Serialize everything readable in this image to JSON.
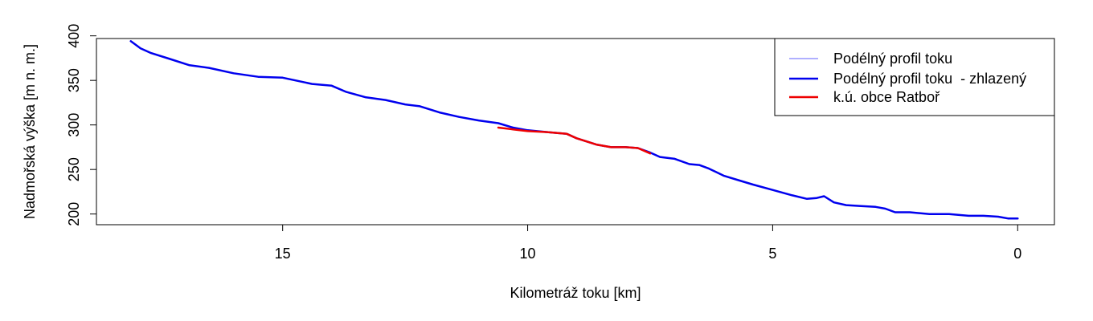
{
  "chart_data": {
    "type": "line",
    "title": "",
    "xlabel": "Kilometráž toku [km]",
    "ylabel": "Nadmořská výška [m n. m.]",
    "xlim": [
      18.8,
      -0.75
    ],
    "ylim": [
      188,
      397
    ],
    "x_reversed": true,
    "grid": false,
    "legend_position": "top-right",
    "xticks": [
      15,
      10,
      5,
      0
    ],
    "yticks": [
      200,
      250,
      300,
      350,
      400
    ],
    "series": [
      {
        "name": "Podélný profil toku",
        "color": "#8080ff",
        "x": [
          18.1,
          17.9,
          17.7,
          17.3,
          16.9,
          16.5,
          16.0,
          15.5,
          15.0,
          14.4,
          14.0,
          13.7,
          13.3,
          12.9,
          12.5,
          12.2,
          11.8,
          11.4,
          11.0,
          10.6,
          10.3,
          10.0,
          9.6,
          9.2,
          9.0,
          8.6,
          8.3,
          8.0,
          7.75,
          7.5,
          7.3,
          7.0,
          6.7,
          6.5,
          6.3,
          6.0,
          5.7,
          5.4,
          5.0,
          4.6,
          4.3,
          4.1,
          3.95,
          3.75,
          3.5,
          3.2,
          2.9,
          2.7,
          2.5,
          2.2,
          1.8,
          1.4,
          1.0,
          0.7,
          0.4,
          0.2,
          0.0
        ],
        "y": [
          394,
          386,
          381,
          374,
          367,
          364,
          358,
          354,
          353,
          346,
          344,
          337,
          331,
          328,
          323,
          321,
          314,
          309,
          305,
          302,
          297,
          294,
          292,
          290,
          285,
          278,
          275,
          275,
          274,
          269,
          264,
          262,
          256,
          255,
          251,
          243,
          238,
          233,
          227,
          221,
          217,
          218,
          220,
          213,
          210,
          209,
          208,
          206,
          202,
          202,
          200,
          200,
          198,
          198,
          197,
          195,
          195
        ]
      },
      {
        "name": "Podélný profil toku  - zhlazený",
        "color": "#0000ee",
        "x": [
          18.1,
          17.9,
          17.7,
          17.3,
          16.9,
          16.5,
          16.0,
          15.5,
          15.0,
          14.4,
          14.0,
          13.7,
          13.3,
          12.9,
          12.5,
          12.2,
          11.8,
          11.4,
          11.0,
          10.6,
          10.3,
          10.0,
          9.6,
          9.2,
          9.0,
          8.6,
          8.3,
          8.0,
          7.75,
          7.5,
          7.3,
          7.0,
          6.7,
          6.5,
          6.3,
          6.0,
          5.7,
          5.4,
          5.0,
          4.6,
          4.3,
          4.1,
          3.95,
          3.75,
          3.5,
          3.2,
          2.9,
          2.7,
          2.5,
          2.2,
          1.8,
          1.4,
          1.0,
          0.7,
          0.4,
          0.2,
          0.0
        ],
        "y": [
          394,
          386,
          381,
          374,
          367,
          364,
          358,
          354,
          353,
          346,
          344,
          337,
          331,
          328,
          323,
          321,
          314,
          309,
          305,
          302,
          297,
          294,
          292,
          290,
          285,
          278,
          275,
          275,
          274,
          269,
          264,
          262,
          256,
          255,
          251,
          243,
          238,
          233,
          227,
          221,
          217,
          218,
          220,
          213,
          210,
          209,
          208,
          206,
          202,
          202,
          200,
          200,
          198,
          198,
          197,
          195,
          195
        ]
      },
      {
        "name": "k.ú. obce Ratboř",
        "color": "#ee0000",
        "x": [
          10.6,
          10.3,
          10.0,
          9.6,
          9.2,
          9.0,
          8.6,
          8.3,
          8.0,
          7.75,
          7.5
        ],
        "y": [
          297,
          295,
          293,
          292,
          290,
          285,
          278,
          275,
          275,
          274,
          268
        ]
      }
    ]
  }
}
